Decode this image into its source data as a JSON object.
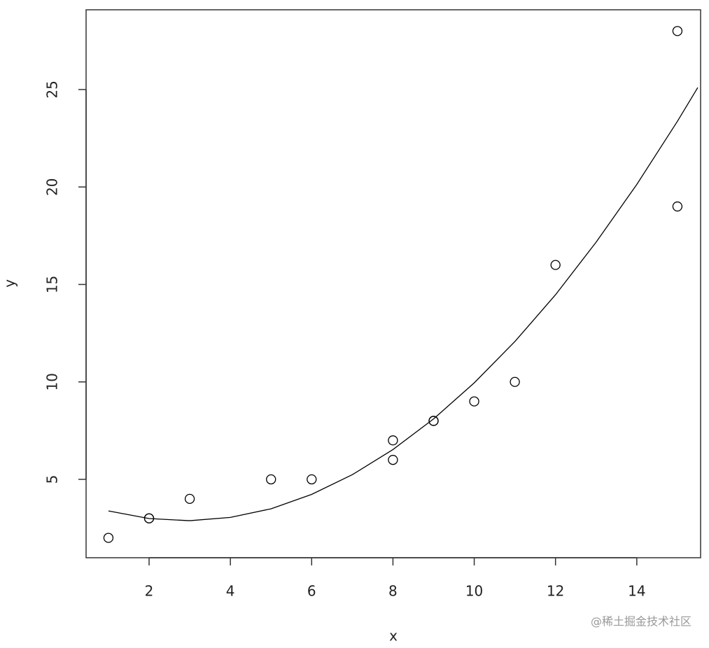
{
  "chart_data": {
    "type": "scatter",
    "xlabel": "x",
    "ylabel": "y",
    "xlim": [
      0.45,
      15.57
    ],
    "ylim": [
      0.98,
      29.09
    ],
    "xticks": [
      2,
      4,
      6,
      8,
      10,
      12,
      14
    ],
    "yticks": [
      5,
      10,
      15,
      20,
      25
    ],
    "color": "#000000",
    "points": {
      "x": [
        1,
        2,
        2,
        3,
        5,
        6,
        8,
        8,
        9,
        9,
        10,
        11,
        12,
        15,
        15
      ],
      "y": [
        2,
        3,
        3,
        4,
        5,
        5,
        6,
        7,
        8,
        8,
        9,
        10,
        16,
        19,
        28
      ]
    },
    "fit": {
      "x": [
        1,
        2,
        3,
        4,
        5,
        6,
        7,
        8,
        9,
        10,
        11,
        12,
        13,
        14,
        15,
        15.5
      ],
      "y": [
        3.38,
        2.99,
        2.88,
        3.05,
        3.49,
        4.23,
        5.24,
        6.53,
        8.1,
        9.95,
        12.07,
        14.47,
        17.17,
        20.13,
        23.37,
        25.1
      ]
    },
    "watermark": "@稀土掘金技术社区"
  }
}
